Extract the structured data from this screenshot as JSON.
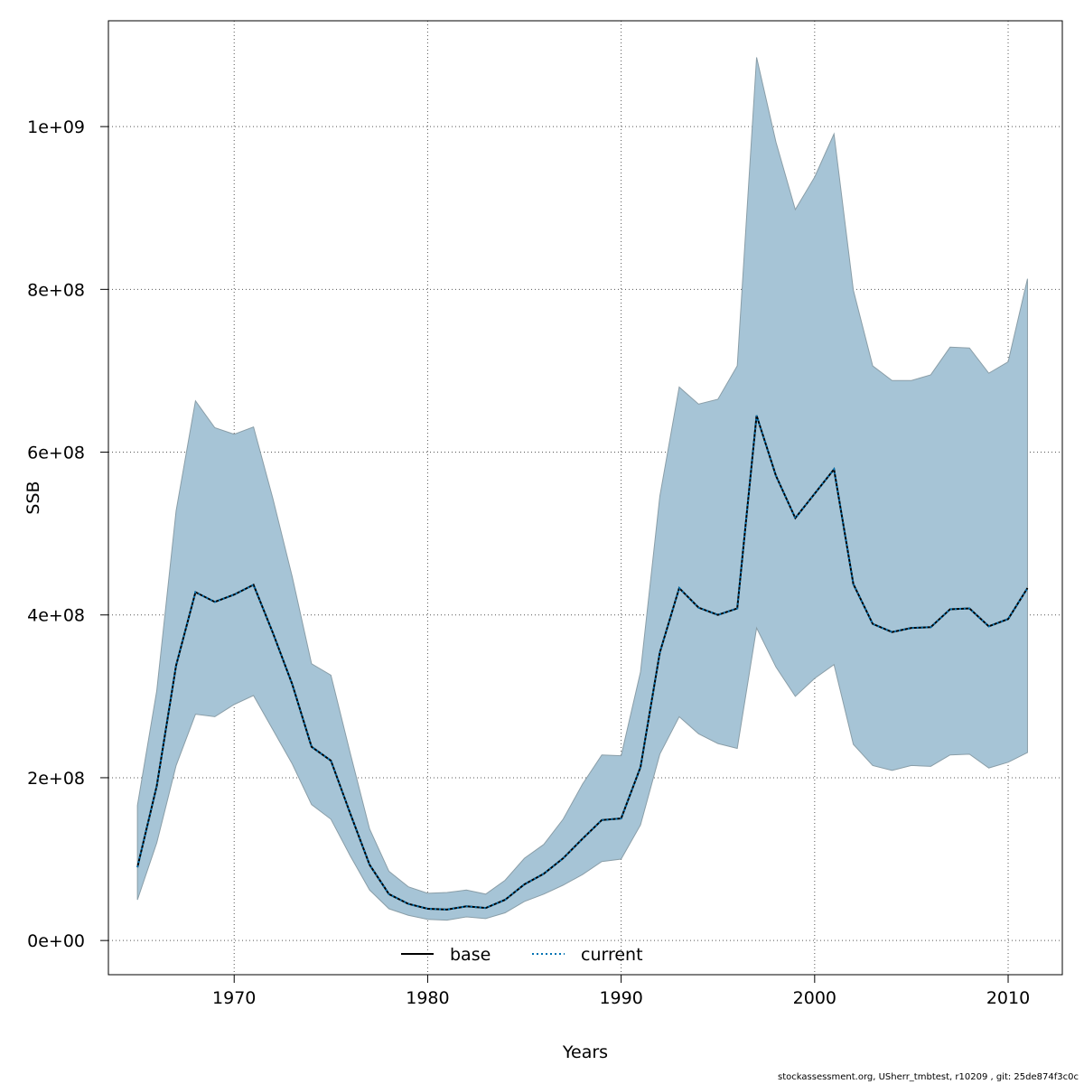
{
  "chart_data": {
    "type": "line",
    "title": "",
    "xlabel": "Years",
    "ylabel": "SSB",
    "xlim": [
      1963.5,
      2012.8
    ],
    "ylim": [
      -42000000,
      1130000000
    ],
    "x_ticks": [
      1970,
      1980,
      1990,
      2000,
      2010
    ],
    "x_tick_labels": [
      "1970",
      "1980",
      "1990",
      "2000",
      "2010"
    ],
    "y_ticks": [
      0,
      200000000,
      400000000,
      600000000,
      800000000,
      1000000000
    ],
    "y_tick_labels": [
      "0e+00",
      "2e+08",
      "4e+08",
      "6e+08",
      "8e+08",
      "1e+09"
    ],
    "grid": true,
    "legend_position": "bottom-center",
    "years": [
      1965,
      1966,
      1967,
      1968,
      1969,
      1970,
      1971,
      1972,
      1973,
      1974,
      1975,
      1976,
      1977,
      1978,
      1979,
      1980,
      1981,
      1982,
      1983,
      1984,
      1985,
      1986,
      1987,
      1988,
      1989,
      1990,
      1991,
      1992,
      1993,
      1994,
      1995,
      1996,
      1997,
      1998,
      1999,
      2000,
      2001,
      2002,
      2003,
      2004,
      2005,
      2006,
      2007,
      2008,
      2009,
      2010,
      2011
    ],
    "band_upper": [
      166000000,
      307000000,
      528000000,
      663000000,
      630000000,
      622000000,
      631000000,
      543000000,
      447000000,
      340000000,
      326000000,
      230000000,
      137000000,
      85000000,
      66000000,
      58000000,
      59000000,
      62000000,
      57000000,
      74000000,
      101000000,
      118000000,
      149000000,
      192000000,
      228000000,
      227000000,
      330000000,
      546000000,
      680000000,
      659000000,
      665000000,
      706000000,
      1085000000,
      981000000,
      898000000,
      938000000,
      991000000,
      799000000,
      706000000,
      688000000,
      688000000,
      695000000,
      729000000,
      728000000,
      697000000,
      711000000,
      813000000
    ],
    "band_lower": [
      50000000,
      120000000,
      215000000,
      278000000,
      275000000,
      290000000,
      301000000,
      259000000,
      217000000,
      167000000,
      149000000,
      104000000,
      62000000,
      39000000,
      31000000,
      26000000,
      25000000,
      29000000,
      27000000,
      34000000,
      48000000,
      57000000,
      68000000,
      81000000,
      97000000,
      100000000,
      142000000,
      229000000,
      275000000,
      254000000,
      242000000,
      236000000,
      384000000,
      336000000,
      300000000,
      322000000,
      339000000,
      241000000,
      215000000,
      209000000,
      215000000,
      214000000,
      228000000,
      229000000,
      212000000,
      219000000,
      231000000
    ],
    "series": [
      {
        "name": "base",
        "color": "#000000",
        "style": "solid",
        "values": [
          90000000,
          190000000,
          338000000,
          428000000,
          416000000,
          425000000,
          437000000,
          378000000,
          315000000,
          238000000,
          221000000,
          156000000,
          93000000,
          57000000,
          45000000,
          39000000,
          38000000,
          42000000,
          40000000,
          50000000,
          69000000,
          82000000,
          101000000,
          125000000,
          148000000,
          150000000,
          213000000,
          354000000,
          433000000,
          409000000,
          400000000,
          408000000,
          645000000,
          571000000,
          519000000,
          549000000,
          579000000,
          438000000,
          389000000,
          379000000,
          384000000,
          385000000,
          407000000,
          408000000,
          386000000,
          395000000,
          433000000
        ]
      },
      {
        "name": "current",
        "color": "#0072b2",
        "style": "dotted",
        "values": [
          90000000,
          190000000,
          338000000,
          428000000,
          416000000,
          425000000,
          437000000,
          378000000,
          315000000,
          238000000,
          221000000,
          156000000,
          93000000,
          57000000,
          45000000,
          39000000,
          38000000,
          42000000,
          40000000,
          50000000,
          69000000,
          82000000,
          101000000,
          125000000,
          148000000,
          150000000,
          213000000,
          354000000,
          433000000,
          409000000,
          400000000,
          408000000,
          645000000,
          571000000,
          519000000,
          549000000,
          579000000,
          438000000,
          389000000,
          379000000,
          384000000,
          385000000,
          407000000,
          408000000,
          386000000,
          395000000,
          433000000
        ]
      }
    ],
    "band_color": "#a6c4d6"
  },
  "footer_text": "stockassessment.org, USherr_tmbtest, r10209 , git: 25de874f3c0c"
}
